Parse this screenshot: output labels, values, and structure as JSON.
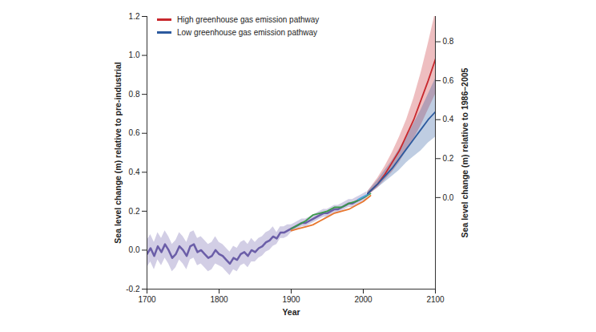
{
  "chart_data": {
    "type": "line",
    "x_label": "Year",
    "y_label": "Sea level change (m) relative to pre-industrial",
    "y2_label": "Sea level change (m) relative to 1986–2005",
    "xlim": [
      1700,
      2100
    ],
    "xticks": [
      1700,
      1800,
      1900,
      2000,
      2100
    ],
    "ylim": [
      -0.2,
      1.2
    ],
    "yticks": [
      -0.2,
      {
        "value": 0,
        "label": "0.0"
      },
      0.2,
      0.4,
      0.6,
      0.8,
      {
        "value": 1,
        "label": "1.0"
      },
      1.2
    ],
    "y2lim": [
      -0.47,
      0.93
    ],
    "y2ticks": [
      {
        "value": 0,
        "label": "0.0"
      },
      0.2,
      0.4,
      0.6,
      0.8
    ],
    "grid": false,
    "legend": "top-left",
    "series": [
      {
        "color": "#6b5ea8",
        "x": [
          1700,
          1705,
          1710,
          1715,
          1720,
          1725,
          1730,
          1735,
          1740,
          1745,
          1750,
          1755,
          1760,
          1765,
          1770,
          1775,
          1780,
          1785,
          1790,
          1795,
          1800,
          1805,
          1810,
          1815,
          1820,
          1825,
          1830,
          1835,
          1840,
          1845,
          1850,
          1855,
          1860,
          1865,
          1870,
          1875,
          1880,
          1885,
          1890,
          1895,
          1900,
          1905,
          1910,
          1915,
          1920,
          1925,
          1930,
          1935,
          1940,
          1945,
          1950,
          1955,
          1960,
          1965,
          1970,
          1975,
          1980,
          1985,
          1990,
          1995,
          2000,
          2005
        ],
        "values": [
          -0.02,
          0.01,
          -0.03,
          0.02,
          -0.01,
          0.03,
          0.0,
          -0.04,
          -0.02,
          0.02,
          0.0,
          -0.03,
          0.02,
          0.03,
          -0.01,
          0.0,
          -0.02,
          -0.04,
          -0.03,
          0.0,
          -0.02,
          -0.03,
          -0.05,
          -0.07,
          -0.04,
          -0.05,
          -0.02,
          -0.01,
          -0.03,
          0.0,
          -0.01,
          0.01,
          0.02,
          0.04,
          0.05,
          0.07,
          0.06,
          0.09,
          0.09,
          0.1,
          0.11,
          0.12,
          0.13,
          0.14,
          0.14,
          0.15,
          0.16,
          0.17,
          0.18,
          0.19,
          0.19,
          0.2,
          0.21,
          0.21,
          0.22,
          0.23,
          0.24,
          0.24,
          0.25,
          0.26,
          0.27,
          0.28
        ],
        "lower": [
          -0.09,
          -0.06,
          -0.1,
          -0.05,
          -0.08,
          -0.04,
          -0.07,
          -0.11,
          -0.09,
          -0.05,
          -0.07,
          -0.1,
          -0.05,
          -0.04,
          -0.08,
          -0.07,
          -0.09,
          -0.11,
          -0.1,
          -0.07,
          -0.08,
          -0.09,
          -0.11,
          -0.13,
          -0.1,
          -0.11,
          -0.08,
          -0.07,
          -0.09,
          -0.06,
          -0.06,
          -0.04,
          -0.03,
          -0.01,
          0.0,
          0.02,
          0.03,
          0.06,
          0.06,
          0.07,
          0.09,
          0.1,
          0.11,
          0.12,
          0.12,
          0.13,
          0.14,
          0.15,
          0.16,
          0.17,
          0.17,
          0.18,
          0.19,
          0.19,
          0.2,
          0.21,
          0.22,
          0.22,
          0.23,
          0.24,
          0.25,
          0.26
        ],
        "upper": [
          0.05,
          0.08,
          0.04,
          0.09,
          0.06,
          0.1,
          0.07,
          0.03,
          0.05,
          0.09,
          0.07,
          0.04,
          0.09,
          0.1,
          0.06,
          0.07,
          0.05,
          0.03,
          0.04,
          0.07,
          0.04,
          0.03,
          0.01,
          -0.01,
          0.02,
          0.01,
          0.04,
          0.05,
          0.03,
          0.06,
          0.04,
          0.06,
          0.07,
          0.09,
          0.1,
          0.12,
          0.09,
          0.12,
          0.12,
          0.13,
          0.13,
          0.14,
          0.15,
          0.16,
          0.16,
          0.17,
          0.18,
          0.19,
          0.2,
          0.21,
          0.21,
          0.22,
          0.23,
          0.23,
          0.24,
          0.25,
          0.26,
          0.26,
          0.27,
          0.28,
          0.29,
          0.3
        ]
      },
      {
        "color": "#3a9a4a",
        "x": [
          1900,
          1910,
          1920,
          1930,
          1940,
          1950,
          1960,
          1970,
          1980,
          1990,
          2000,
          2010
        ],
        "values": [
          0.11,
          0.13,
          0.15,
          0.18,
          0.19,
          0.2,
          0.22,
          0.22,
          0.24,
          0.25,
          0.27,
          0.29
        ]
      },
      {
        "color": "#e8772e",
        "x": [
          1900,
          1910,
          1920,
          1930,
          1940,
          1950,
          1960,
          1970,
          1980,
          1990,
          2000,
          2010
        ],
        "values": [
          0.1,
          0.11,
          0.12,
          0.13,
          0.15,
          0.17,
          0.19,
          0.2,
          0.21,
          0.23,
          0.25,
          0.28
        ]
      },
      {
        "color": "#4aa3df",
        "x": [
          1993,
          1998,
          2003,
          2008
        ],
        "values": [
          0.26,
          0.27,
          0.28,
          0.29
        ]
      },
      {
        "name": "High greenhouse gas emission pathway",
        "color": "#c8282d",
        "x": [
          2006,
          2020,
          2030,
          2040,
          2050,
          2060,
          2070,
          2080,
          2090,
          2100
        ],
        "values": [
          0.29,
          0.34,
          0.39,
          0.45,
          0.51,
          0.59,
          0.67,
          0.77,
          0.87,
          0.98
        ],
        "lower": [
          0.28,
          0.32,
          0.36,
          0.4,
          0.45,
          0.51,
          0.57,
          0.64,
          0.72,
          0.8
        ],
        "upper": [
          0.3,
          0.37,
          0.43,
          0.5,
          0.58,
          0.67,
          0.78,
          0.91,
          1.06,
          1.22
        ]
      },
      {
        "name": "Low greenhouse gas emission pathway",
        "color": "#2c5a9e",
        "x": [
          2006,
          2020,
          2030,
          2040,
          2050,
          2060,
          2070,
          2080,
          2090,
          2100
        ],
        "values": [
          0.29,
          0.34,
          0.38,
          0.42,
          0.47,
          0.52,
          0.57,
          0.62,
          0.67,
          0.71
        ],
        "lower": [
          0.28,
          0.32,
          0.35,
          0.38,
          0.41,
          0.45,
          0.48,
          0.51,
          0.55,
          0.58
        ],
        "upper": [
          0.3,
          0.36,
          0.41,
          0.46,
          0.52,
          0.58,
          0.65,
          0.72,
          0.8,
          0.88
        ]
      }
    ]
  }
}
